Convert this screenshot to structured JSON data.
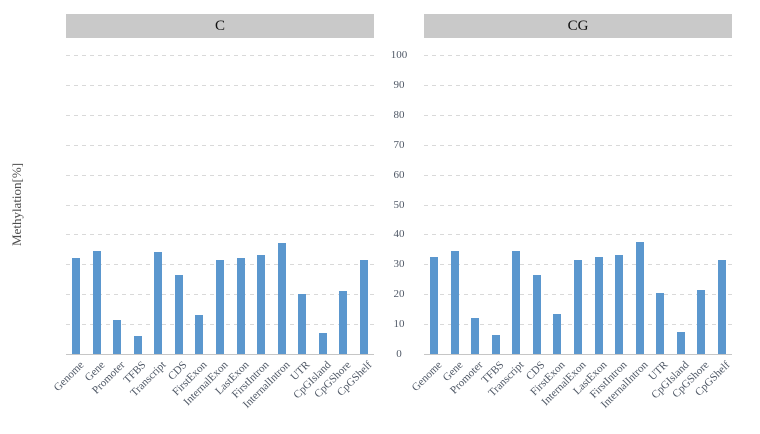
{
  "chart_data": {
    "type": "bar",
    "ylabel": "Methylation[%]",
    "ylim": [
      0,
      100
    ],
    "yticks": [
      0,
      10,
      20,
      30,
      40,
      50,
      60,
      70,
      80,
      90,
      100
    ],
    "grid": "horizontal-dashed",
    "legend_position": "none",
    "bar_color": "#5b97ce",
    "panel_header_color": "#c9c9c9",
    "categories": [
      "Genome",
      "Gene",
      "Promoter",
      "TFBS",
      "Transcript",
      "CDS",
      "FirstExon",
      "InternalExon",
      "LastExon",
      "FirstIntron",
      "InternalIntron",
      "UTR",
      "CpGIsland",
      "CpGShore",
      "CpGShelf"
    ],
    "panels": [
      {
        "title": "C",
        "values": [
          32,
          34.5,
          11.5,
          6,
          34,
          26.5,
          13,
          31.5,
          32,
          33,
          37,
          20,
          7,
          21,
          31.5
        ]
      },
      {
        "title": "CG",
        "values": [
          32.5,
          34.5,
          12,
          6.5,
          34.5,
          26.5,
          13.5,
          31.5,
          32.5,
          33,
          37.5,
          20.5,
          7.5,
          21.5,
          31.5
        ]
      }
    ]
  }
}
